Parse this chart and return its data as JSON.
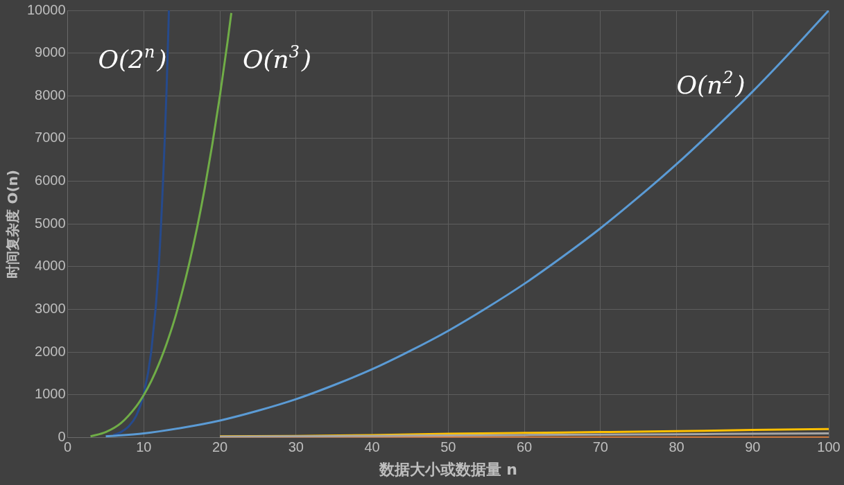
{
  "chart_data": {
    "type": "line",
    "xlabel": "数据大小或数据量 n",
    "ylabel": "时间复杂度 O(n)",
    "xlim": [
      0,
      100
    ],
    "ylim": [
      0,
      10000
    ],
    "xticks": [
      0,
      10,
      20,
      30,
      40,
      50,
      60,
      70,
      80,
      90,
      100
    ],
    "yticks": [
      0,
      1000,
      2000,
      3000,
      4000,
      5000,
      6000,
      7000,
      8000,
      9000,
      10000
    ],
    "grid": true,
    "legend": false,
    "marker": "none",
    "line_style": "solid",
    "series": [
      {
        "color": "#a5a5a5",
        "x": [
          20,
          30,
          40,
          50,
          60,
          70,
          80,
          90,
          100
        ],
        "values": [
          20,
          30,
          40,
          50,
          60,
          70,
          80,
          90,
          100
        ]
      },
      {
        "color": "#ed7d31",
        "x": [
          20,
          30,
          40,
          50,
          60,
          70,
          80,
          90,
          100
        ],
        "values": [
          0,
          0,
          0,
          0,
          0,
          0,
          0,
          0,
          0
        ]
      },
      {
        "color": "#ffc000",
        "x": [
          20,
          30,
          40,
          50,
          60,
          70,
          80,
          90,
          100
        ],
        "values": [
          30,
          40,
          60,
          90,
          110,
          130,
          150,
          180,
          200
        ]
      },
      {
        "color": "#5b9bd5",
        "x": [
          5,
          10,
          15,
          20,
          25,
          30,
          35,
          40,
          45,
          50,
          55,
          60,
          65,
          70,
          75,
          80,
          85,
          90,
          95,
          100
        ],
        "values": [
          30,
          100,
          230,
          400,
          630,
          900,
          1230,
          1600,
          2030,
          2500,
          3030,
          3600,
          4230,
          4900,
          5630,
          6400,
          7230,
          8100,
          9030,
          10000
        ]
      },
      {
        "color": "#70ad47",
        "x": [
          3,
          5,
          7,
          9,
          10,
          11,
          12,
          13,
          14,
          15,
          16,
          17,
          18,
          19,
          20,
          21,
          21.5
        ],
        "values": [
          30,
          130,
          340,
          730,
          1000,
          1330,
          1730,
          2200,
          2740,
          3380,
          4100,
          4910,
          5830,
          6860,
          8000,
          9260,
          9940
        ]
      },
      {
        "color": "#264a8c",
        "x": [
          6,
          7,
          8,
          9,
          10,
          11,
          12,
          13,
          13.3
        ],
        "values": [
          60,
          130,
          260,
          510,
          1020,
          2050,
          4100,
          8190,
          10000
        ]
      }
    ],
    "annotations": [
      "O(2$^{n}$)",
      "O(n$^{3}$)",
      "O(n$^{2}$)"
    ]
  }
}
